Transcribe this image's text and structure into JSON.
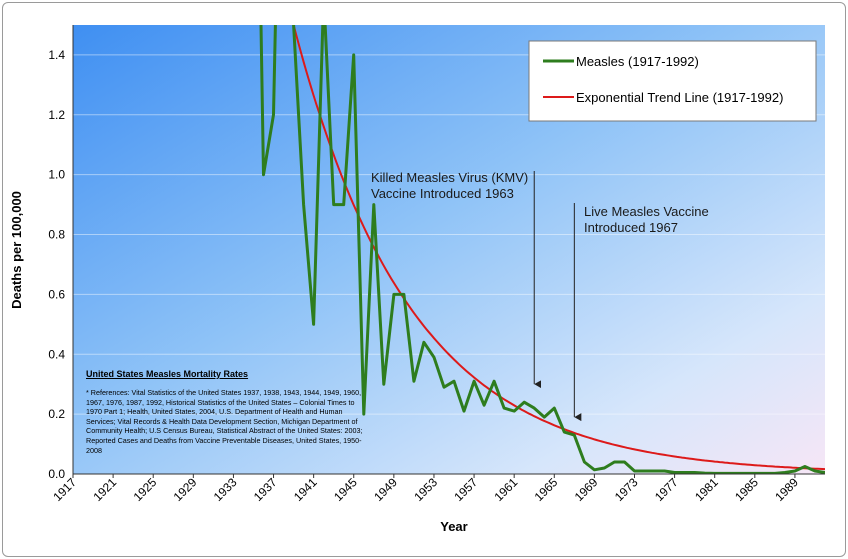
{
  "chart_data": {
    "type": "line",
    "title": "",
    "xlabel": "Year",
    "ylabel": "Deaths per 100,000",
    "xlim": [
      1917,
      1992
    ],
    "ylim": [
      0,
      1.5
    ],
    "x_ticks": [
      "1917",
      "1921",
      "1925",
      "1929",
      "1933",
      "1937",
      "1941",
      "1945",
      "1949",
      "1953",
      "1957",
      "1961",
      "1965",
      "1969",
      "1973",
      "1977",
      "1981",
      "1985",
      "1989"
    ],
    "y_ticks": [
      "0.0",
      "0.2",
      "0.4",
      "0.6",
      "0.8",
      "1.0",
      "1.2",
      "1.4"
    ],
    "grid": "horizontal",
    "legend_position": "top-right",
    "series": [
      {
        "name": "Measles (1917-1992)",
        "color": "#2e7d1e",
        "x": [
          1935,
          1936,
          1937,
          1938,
          1939,
          1940,
          1941,
          1942,
          1943,
          1944,
          1945,
          1946,
          1947,
          1948,
          1949,
          1950,
          1951,
          1952,
          1953,
          1954,
          1955,
          1956,
          1957,
          1958,
          1959,
          1960,
          1961,
          1962,
          1963,
          1964,
          1965,
          1966,
          1967,
          1968,
          1969,
          1970,
          1971,
          1972,
          1973,
          1974,
          1975,
          1976,
          1977,
          1978,
          1979,
          1980,
          1981,
          1982,
          1983,
          1984,
          1985,
          1986,
          1987,
          1988,
          1989,
          1990,
          1991,
          1992
        ],
        "y": [
          3.0,
          1.0,
          1.2,
          2.8,
          1.5,
          0.9,
          0.5,
          1.6,
          0.9,
          0.9,
          1.4,
          0.2,
          0.9,
          0.3,
          0.6,
          0.6,
          0.31,
          0.44,
          0.39,
          0.29,
          0.31,
          0.21,
          0.31,
          0.23,
          0.31,
          0.22,
          0.21,
          0.24,
          0.22,
          0.19,
          0.22,
          0.14,
          0.13,
          0.04,
          0.014,
          0.02,
          0.04,
          0.04,
          0.01,
          0.01,
          0.01,
          0.01,
          0.005,
          0.005,
          0.005,
          0.003,
          0.002,
          0.002,
          0.002,
          0.002,
          0.002,
          0.002,
          0.002,
          0.005,
          0.01,
          0.025,
          0.01,
          0.005
        ]
      },
      {
        "name": "Exponential Trend Line (1917-1992)",
        "color": "#dd1a1a",
        "curve": {
          "a": 1.5,
          "b": 0.0854,
          "x0": 1939,
          "from": 1939,
          "to": 1992
        }
      }
    ],
    "annotations": [
      {
        "id": "kmv",
        "lines": [
          "Killed Measles Virus (KMV)",
          "Vaccine Introduced 1963"
        ],
        "arrow_x": 1963,
        "arrow_to_y": 0.28
      },
      {
        "id": "live",
        "lines": [
          "Live Measles Vaccine",
          "Introduced 1967"
        ],
        "arrow_x": 1967,
        "arrow_to_y": 0.17
      }
    ]
  },
  "references": {
    "title": "United States Measles Mortality Rates",
    "body": "* References: Vital Statistics of the United States 1937, 1938, 1943, 1944, 1949, 1960, 1967, 1976, 1987, 1992, Historical Statistics of the United States – Colonial Times to 1970 Part 1; Health, United States, 2004, U.S. Department of Health and Human Services; Vital Records & Health Data Development Section, Michigan Department of Community Health; U.S Census Bureau, Statistical Abstract of the United States: 2003; Reported Cases and Deaths from Vaccine Preventable Diseases, United States, 1950-2008"
  }
}
